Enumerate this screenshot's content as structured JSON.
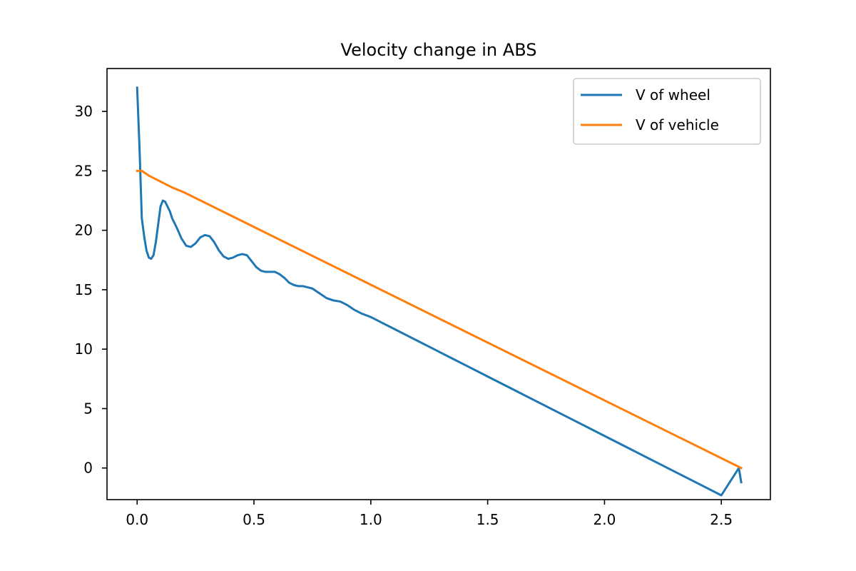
{
  "chart_data": {
    "type": "line",
    "title": "Velocity change in ABS",
    "xlabel": "",
    "ylabel": "",
    "xlim": [
      -0.129,
      2.71
    ],
    "ylim": [
      -2.66,
      33.61
    ],
    "xticks": [
      0.0,
      0.5,
      1.0,
      1.5,
      2.0,
      2.5
    ],
    "xtick_labels": [
      "0.0",
      "0.5",
      "1.0",
      "1.5",
      "2.0",
      "2.5"
    ],
    "yticks": [
      0,
      5,
      10,
      15,
      20,
      25,
      30
    ],
    "ytick_labels": [
      "0",
      "5",
      "10",
      "15",
      "20",
      "25",
      "30"
    ],
    "grid": false,
    "legend_position": "top-right",
    "series": [
      {
        "name": "V of wheel",
        "color": "#1f77b4",
        "x": [
          0.0,
          0.01,
          0.02,
          0.03,
          0.04,
          0.05,
          0.06,
          0.07,
          0.08,
          0.09,
          0.1,
          0.11,
          0.12,
          0.13,
          0.14,
          0.15,
          0.17,
          0.19,
          0.21,
          0.23,
          0.25,
          0.27,
          0.29,
          0.31,
          0.33,
          0.35,
          0.37,
          0.39,
          0.41,
          0.43,
          0.45,
          0.47,
          0.49,
          0.51,
          0.53,
          0.55,
          0.57,
          0.59,
          0.61,
          0.63,
          0.65,
          0.67,
          0.69,
          0.71,
          0.73,
          0.75,
          0.78,
          0.81,
          0.84,
          0.87,
          0.9,
          0.93,
          0.96,
          1.0,
          1.05,
          1.1,
          1.15,
          1.2,
          1.25,
          1.3,
          1.35,
          1.4,
          1.5,
          1.6,
          1.7,
          1.8,
          1.9,
          2.0,
          2.1,
          2.2,
          2.3,
          2.4,
          2.5,
          2.575,
          2.585
        ],
        "y": [
          32.0,
          27.0,
          21.0,
          19.5,
          18.3,
          17.7,
          17.6,
          17.9,
          19.0,
          20.5,
          22.0,
          22.5,
          22.4,
          22.0,
          21.6,
          21.0,
          20.2,
          19.3,
          18.7,
          18.6,
          18.9,
          19.4,
          19.6,
          19.5,
          19.0,
          18.3,
          17.8,
          17.6,
          17.7,
          17.9,
          18.0,
          17.9,
          17.4,
          16.9,
          16.6,
          16.5,
          16.5,
          16.5,
          16.3,
          16.0,
          15.6,
          15.4,
          15.3,
          15.3,
          15.2,
          15.1,
          14.7,
          14.3,
          14.1,
          14.0,
          13.7,
          13.3,
          13.0,
          12.7,
          12.2,
          11.7,
          11.2,
          10.7,
          10.2,
          9.7,
          9.2,
          8.7,
          7.7,
          6.7,
          5.7,
          4.7,
          3.7,
          2.7,
          1.7,
          0.7,
          -0.3,
          -1.3,
          -2.3,
          0.0,
          -1.2
        ]
      },
      {
        "name": "V of vehicle",
        "color": "#ff7f0e",
        "x": [
          0.0,
          0.02,
          0.05,
          0.1,
          0.15,
          0.2,
          2.585
        ],
        "y": [
          25.0,
          25.0,
          24.6,
          24.1,
          23.6,
          23.2,
          0.0
        ]
      }
    ]
  }
}
